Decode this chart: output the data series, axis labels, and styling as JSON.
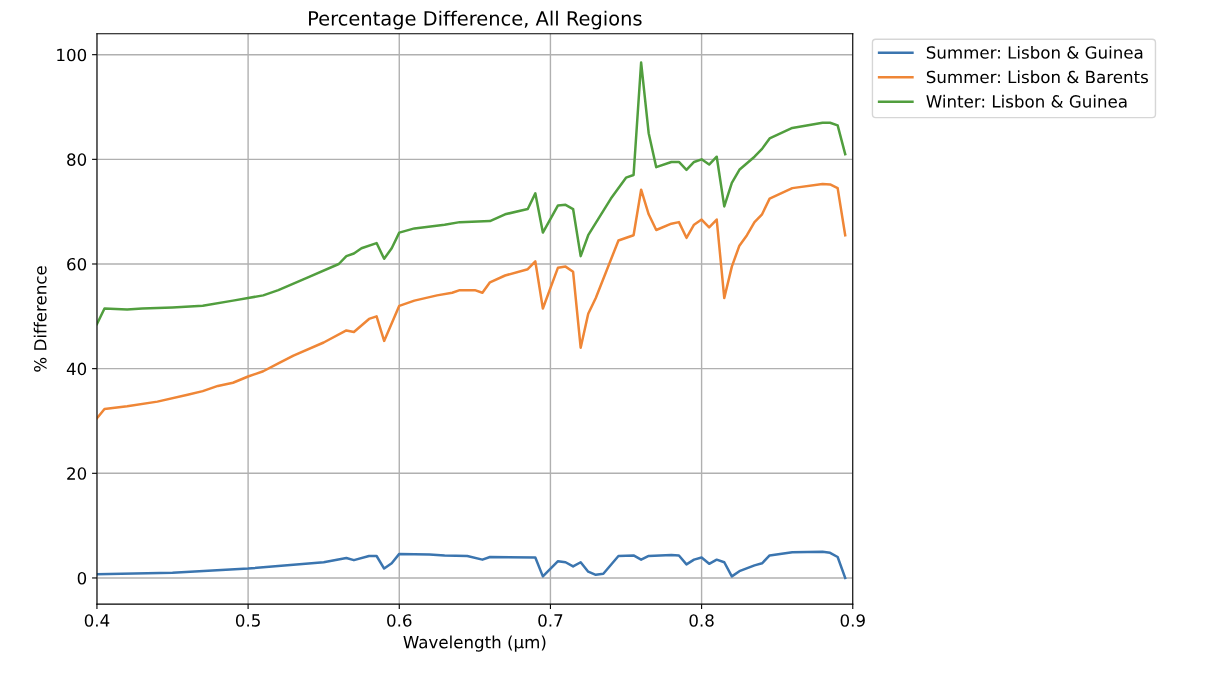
{
  "chart_data": {
    "type": "line",
    "title": "Percentage Difference, All Regions",
    "xlabel": "Wavelength (μm)",
    "ylabel": "% Difference",
    "xlim": [
      0.4,
      0.9
    ],
    "xticks": [
      0.4,
      0.5,
      0.6,
      0.7,
      0.8,
      0.9
    ],
    "ylim": [
      -5,
      104
    ],
    "yticks": [
      0,
      20,
      40,
      60,
      80,
      100
    ],
    "grid": true,
    "legend": "top right",
    "marker": "none",
    "line_style": "solid",
    "series": [
      {
        "name": "Summer: Lisbon & Guinea",
        "color": "#3b75af",
        "x": [
          0.4,
          0.45,
          0.5,
          0.55,
          0.565,
          0.57,
          0.58,
          0.585,
          0.59,
          0.595,
          0.6,
          0.62,
          0.63,
          0.645,
          0.655,
          0.66,
          0.69,
          0.695,
          0.705,
          0.71,
          0.715,
          0.72,
          0.725,
          0.73,
          0.735,
          0.745,
          0.755,
          0.76,
          0.765,
          0.78,
          0.785,
          0.79,
          0.795,
          0.8,
          0.805,
          0.81,
          0.815,
          0.82,
          0.825,
          0.835,
          0.84,
          0.845,
          0.86,
          0.88,
          0.885,
          0.89,
          0.895
        ],
        "values": [
          0.7,
          1.0,
          1.8,
          3,
          3.8,
          3.4,
          4.2,
          4.2,
          1.8,
          2.8,
          4.6,
          4.5,
          4.3,
          4.2,
          3.5,
          4,
          3.9,
          0.3,
          3.2,
          3,
          2.2,
          3,
          1.2,
          0.6,
          0.8,
          4.2,
          4.3,
          3.5,
          4.2,
          4.4,
          4.3,
          2.6,
          3.5,
          3.9,
          2.7,
          3.5,
          3,
          0.3,
          1.3,
          2.4,
          2.8,
          4.3,
          4.9,
          5,
          4.8,
          4,
          0
        ]
      },
      {
        "name": "Summer: Lisbon & Barents",
        "color": "#ef8636",
        "x": [
          0.4,
          0.405,
          0.42,
          0.44,
          0.46,
          0.47,
          0.48,
          0.49,
          0.5,
          0.51,
          0.52,
          0.53,
          0.55,
          0.565,
          0.57,
          0.58,
          0.585,
          0.59,
          0.6,
          0.61,
          0.625,
          0.635,
          0.64,
          0.65,
          0.655,
          0.66,
          0.67,
          0.685,
          0.69,
          0.695,
          0.705,
          0.71,
          0.715,
          0.72,
          0.725,
          0.73,
          0.745,
          0.755,
          0.76,
          0.765,
          0.77,
          0.78,
          0.785,
          0.79,
          0.795,
          0.8,
          0.805,
          0.81,
          0.815,
          0.82,
          0.825,
          0.83,
          0.835,
          0.84,
          0.845,
          0.86,
          0.88,
          0.885,
          0.89,
          0.895
        ],
        "values": [
          30.5,
          32.3,
          32.8,
          33.7,
          35,
          35.7,
          36.7,
          37.3,
          38.5,
          39.5,
          41,
          42.5,
          45,
          47.3,
          47,
          49.5,
          50,
          45.3,
          52,
          53,
          54,
          54.5,
          55,
          55,
          54.5,
          56.5,
          57.8,
          59,
          60.5,
          51.5,
          59.3,
          59.5,
          58.5,
          44,
          50.5,
          53.5,
          64.5,
          65.5,
          74.2,
          69.5,
          66.5,
          67.7,
          68,
          65,
          67.5,
          68.5,
          67,
          68.5,
          53.5,
          59.5,
          63.5,
          65.5,
          68,
          69.5,
          72.5,
          74.5,
          75.3,
          75.2,
          74.5,
          65.5
        ]
      },
      {
        "name": "Winter: Lisbon & Guinea",
        "color": "#519e3e",
        "x": [
          0.4,
          0.405,
          0.42,
          0.43,
          0.45,
          0.47,
          0.49,
          0.5,
          0.51,
          0.52,
          0.54,
          0.56,
          0.565,
          0.57,
          0.575,
          0.585,
          0.59,
          0.595,
          0.6,
          0.61,
          0.63,
          0.64,
          0.66,
          0.67,
          0.685,
          0.69,
          0.695,
          0.705,
          0.71,
          0.715,
          0.72,
          0.725,
          0.74,
          0.75,
          0.755,
          0.76,
          0.765,
          0.77,
          0.78,
          0.785,
          0.79,
          0.795,
          0.8,
          0.805,
          0.81,
          0.815,
          0.82,
          0.825,
          0.835,
          0.84,
          0.845,
          0.86,
          0.88,
          0.885,
          0.89,
          0.895
        ],
        "values": [
          48.5,
          51.5,
          51.3,
          51.5,
          51.7,
          52,
          53,
          53.5,
          54,
          55,
          57.5,
          60,
          61.5,
          62,
          63,
          64,
          61,
          63,
          66,
          66.8,
          67.5,
          68,
          68.2,
          69.5,
          70.5,
          73.5,
          66,
          71.2,
          71.3,
          70.5,
          61.5,
          65.5,
          72.5,
          76.5,
          77,
          98.5,
          85,
          78.5,
          79.5,
          79.5,
          78,
          79.5,
          80,
          79,
          80.5,
          71,
          75.5,
          78,
          80.5,
          82,
          84,
          86,
          87,
          87,
          86.5,
          81
        ]
      }
    ]
  }
}
